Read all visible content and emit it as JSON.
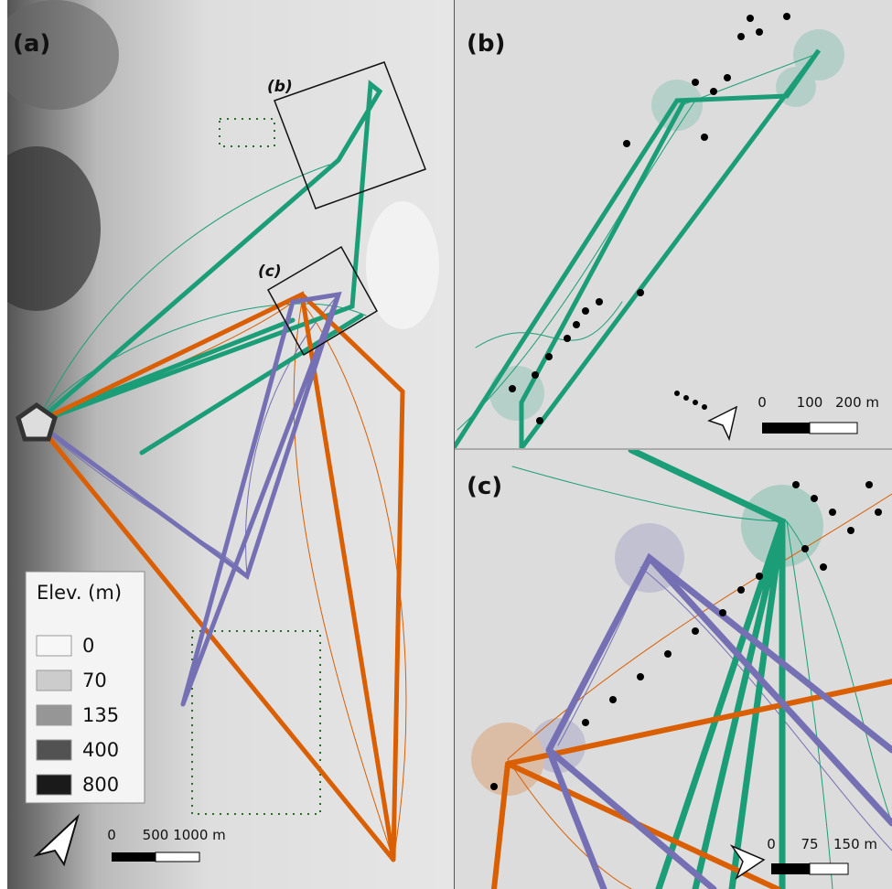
{
  "panels": [
    {
      "label": "(a)",
      "insets": [
        "(b)",
        "(c)"
      ],
      "legend": {
        "title": "Elev. (m)",
        "items": [
          0,
          70,
          135,
          400,
          800
        ]
      },
      "scale": [
        "0",
        "500",
        "1000 m"
      ]
    },
    {
      "label": "(b)",
      "scale": [
        "0",
        "100",
        "200 m"
      ]
    },
    {
      "label": "(c)",
      "scale": [
        "0",
        "75",
        "150 m"
      ]
    }
  ]
}
